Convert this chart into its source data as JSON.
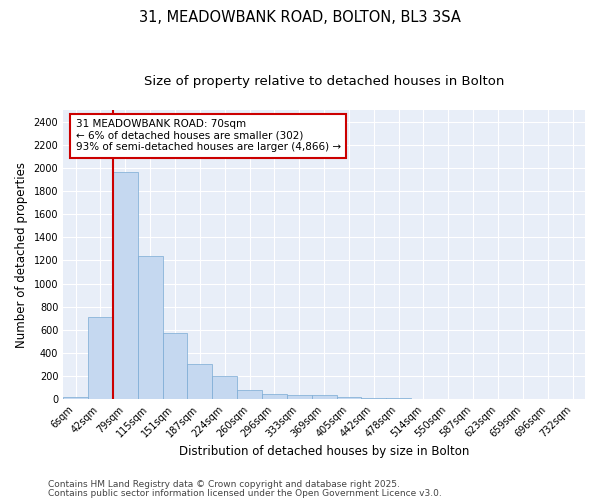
{
  "title1": "31, MEADOWBANK ROAD, BOLTON, BL3 3SA",
  "title2": "Size of property relative to detached houses in Bolton",
  "xlabel": "Distribution of detached houses by size in Bolton",
  "ylabel": "Number of detached properties",
  "bar_labels": [
    "6sqm",
    "42sqm",
    "79sqm",
    "115sqm",
    "151sqm",
    "187sqm",
    "224sqm",
    "260sqm",
    "296sqm",
    "333sqm",
    "369sqm",
    "405sqm",
    "442sqm",
    "478sqm",
    "514sqm",
    "550sqm",
    "587sqm",
    "623sqm",
    "659sqm",
    "696sqm",
    "732sqm"
  ],
  "bar_values": [
    15,
    710,
    1960,
    1240,
    575,
    305,
    200,
    80,
    48,
    38,
    35,
    18,
    12,
    10,
    5,
    3,
    2,
    1,
    0,
    0,
    0
  ],
  "bar_color": "#c5d8f0",
  "bar_edgecolor": "#7aaad4",
  "ylim": [
    0,
    2500
  ],
  "yticks": [
    0,
    200,
    400,
    600,
    800,
    1000,
    1200,
    1400,
    1600,
    1800,
    2000,
    2200,
    2400
  ],
  "vline_x": 1.5,
  "vline_color": "#cc0000",
  "annotation_text": "31 MEADOWBANK ROAD: 70sqm\n← 6% of detached houses are smaller (302)\n93% of semi-detached houses are larger (4,866) →",
  "annotation_box_color": "#ffffff",
  "annotation_box_edgecolor": "#cc0000",
  "footer1": "Contains HM Land Registry data © Crown copyright and database right 2025.",
  "footer2": "Contains public sector information licensed under the Open Government Licence v3.0.",
  "bg_color": "#ffffff",
  "plot_bg_color": "#e8eef8",
  "grid_color": "#ffffff",
  "title_fontsize": 10.5,
  "subtitle_fontsize": 9.5,
  "tick_fontsize": 7,
  "label_fontsize": 8.5,
  "footer_fontsize": 6.5,
  "annot_fontsize": 7.5
}
